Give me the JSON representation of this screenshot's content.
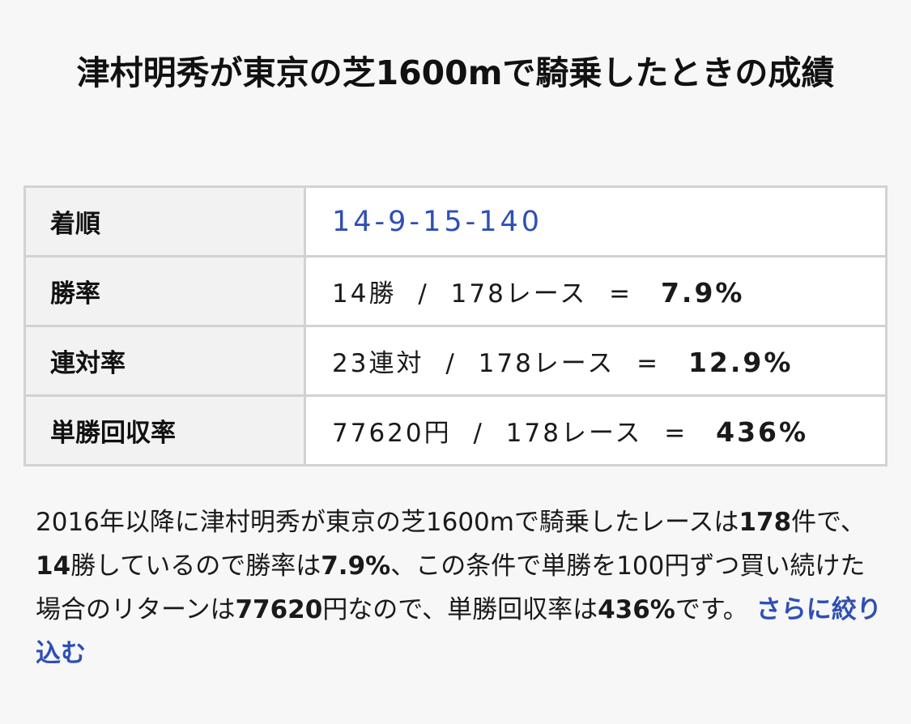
{
  "title": "津村明秀が東京の芝1600mで騎乗したときの成績",
  "table": {
    "finish": {
      "label": "着順",
      "value": "14-9-15-140"
    },
    "win_rate": {
      "label": "勝率",
      "count": "14勝",
      "separator": "/",
      "races": "178レース",
      "equals": "=",
      "result": "7.9%"
    },
    "quinella_rate": {
      "label": "連対率",
      "count": "23連対",
      "separator": "/",
      "races": "178レース",
      "equals": "=",
      "result": "12.9%"
    },
    "return_rate": {
      "label": "単勝回収率",
      "count": "77620円",
      "separator": "/",
      "races": "178レース",
      "equals": "=",
      "result": "436%"
    }
  },
  "summary": {
    "t1": "2016年以降に津村明秀が東京の芝1600mで騎乗したレースは",
    "b1": "178",
    "t2": "件で、",
    "b2": "14",
    "t3": "勝しているので勝率は",
    "b3": "7.9%",
    "t4": "、この条件で単勝を100円ずつ買い続けた場合のリターンは",
    "b4": "77620",
    "t5": "円なので、単勝回収率は",
    "b5": "436%",
    "t6": "です。",
    "link": "さらに絞り込む"
  }
}
